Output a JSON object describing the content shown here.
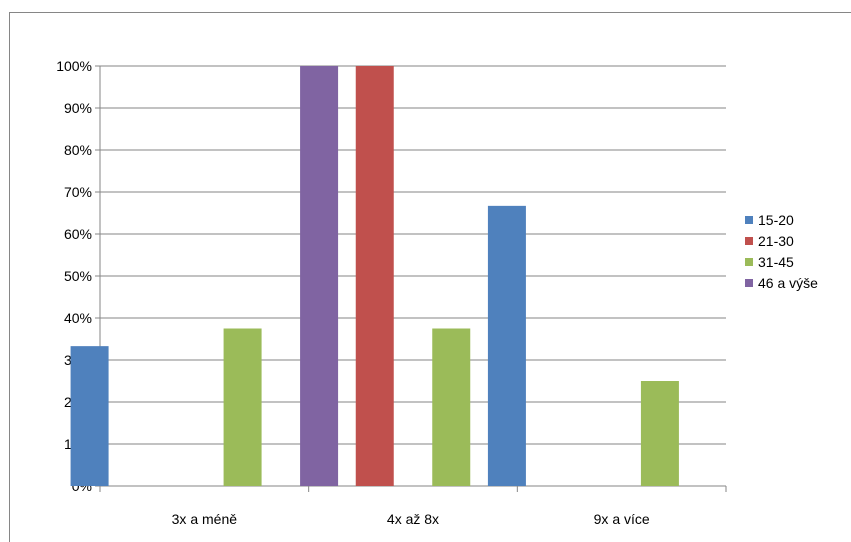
{
  "chart_data": {
    "type": "bar",
    "title": "",
    "xlabel": "",
    "ylabel": "",
    "categories": [
      "3x a méně",
      "4x až 8x",
      "9x a více"
    ],
    "series": [
      {
        "name": "15-20",
        "color": "#4F81BD",
        "values": [
          33.3,
          0,
          66.7
        ]
      },
      {
        "name": "21-30",
        "color": "#C0504D",
        "values": [
          0,
          100,
          0
        ]
      },
      {
        "name": "31-45",
        "color": "#9BBB59",
        "values": [
          37.5,
          37.5,
          25
        ]
      },
      {
        "name": "46 a výše",
        "color": "#8064A2",
        "values": [
          100,
          0,
          0
        ]
      }
    ],
    "ylim": [
      0,
      100
    ],
    "yticks": [
      "0%",
      "10%",
      "20%",
      "30%",
      "40%",
      "50%",
      "60%",
      "70%",
      "80%",
      "90%",
      "100%"
    ],
    "grid": true,
    "legend_position": "right"
  }
}
